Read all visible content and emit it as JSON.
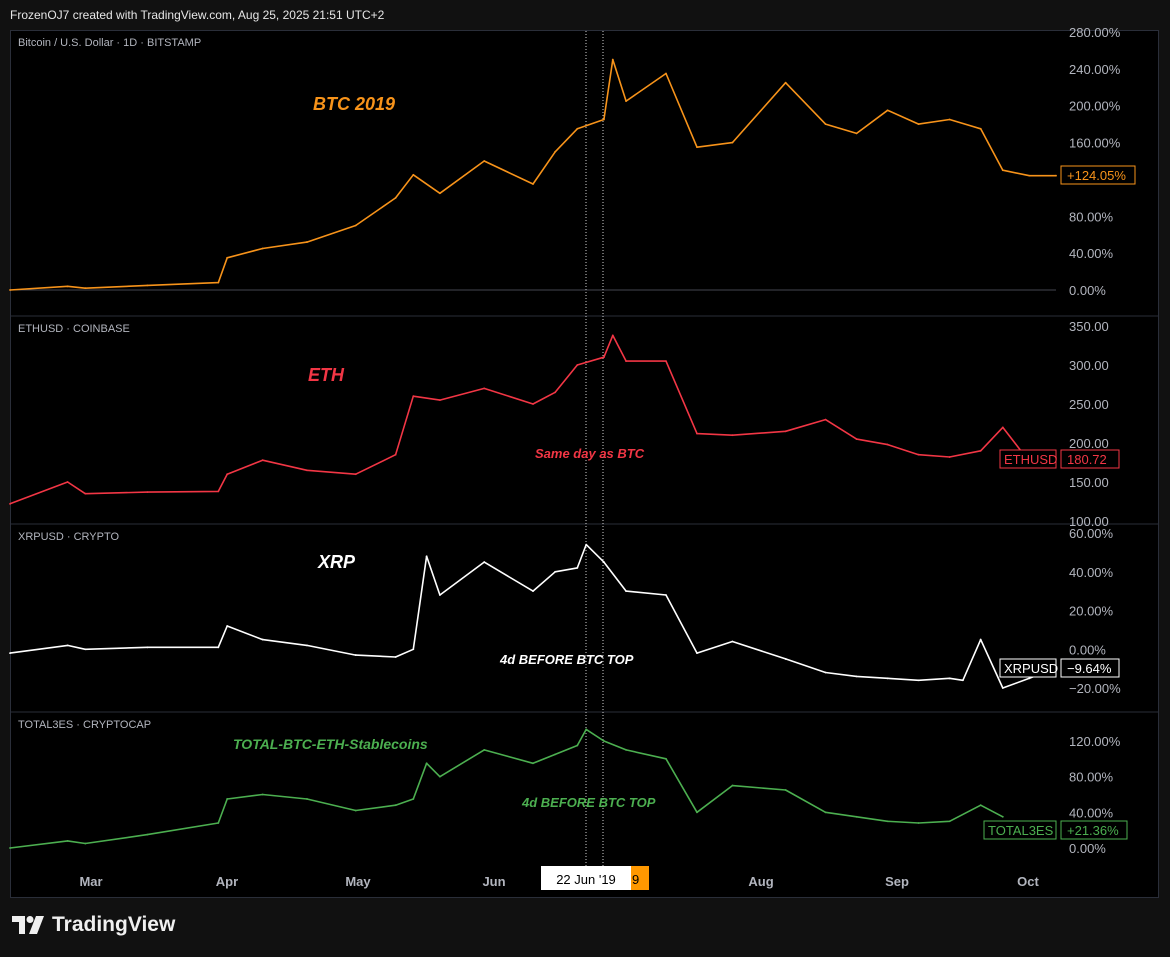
{
  "header": {
    "text": "FrozenOJ7 created with TradingView.com, Aug 25, 2025 21:51 UTC+2"
  },
  "footer": {
    "brand": "TradingView"
  },
  "colors": {
    "btc": "#f7931a",
    "eth": "#f23645",
    "xrp": "#ffffff",
    "total": "#4caf50",
    "grid": "#2a2e39",
    "axis_text": "#b2b5be"
  },
  "x_axis": {
    "labels": [
      "Mar",
      "Apr",
      "May",
      "Jun",
      "Aug",
      "Sep",
      "Oct"
    ],
    "crosshair_label": "22 Jun '19",
    "crosshair_label_overflow": "9"
  },
  "chart_data": [
    {
      "type": "line",
      "title": "Bitcoin / U.S. Dollar · 1D · BITSTAMP",
      "annotation": "BTC 2019",
      "y_ticks": [
        "280.00%",
        "240.00%",
        "200.00%",
        "160.00%",
        "80.00%",
        "40.00%",
        "0.00%"
      ],
      "ylim": [
        0,
        280
      ],
      "unit": "%",
      "last_value_label": "+124.05%",
      "series": [
        {
          "x": [
            "Feb 12",
            "Feb 25",
            "Mar 1",
            "Mar 15",
            "Mar 31",
            "Apr 2",
            "Apr 10",
            "Apr 20",
            "May 1",
            "May 10",
            "May 14",
            "May 20",
            "May 30",
            "Jun 10",
            "Jun 15",
            "Jun 20",
            "Jun 26",
            "Jun 28",
            "Jul 1",
            "Jul 10",
            "Jul 17",
            "Jul 25",
            "Aug 6",
            "Aug 15",
            "Aug 22",
            "Aug 29",
            "Sep 5",
            "Sep 12",
            "Sep 19",
            "Sep 24",
            "Sep 30",
            "Oct 6"
          ],
          "values": [
            0,
            4,
            2,
            5,
            8,
            35,
            45,
            52,
            70,
            100,
            125,
            105,
            140,
            115,
            150,
            175,
            185,
            250,
            205,
            235,
            155,
            160,
            225,
            180,
            170,
            195,
            180,
            185,
            175,
            130,
            124,
            124.05
          ]
        }
      ]
    },
    {
      "type": "line",
      "title": "ETHUSD · COINBASE",
      "annotation": "ETH",
      "note": "Same day as BTC",
      "y_ticks": [
        "350.00",
        "300.00",
        "250.00",
        "200.00",
        "150.00",
        "100.00"
      ],
      "ylim": [
        100,
        350
      ],
      "last_value_tag": "ETHUSD",
      "last_value_label": "180.72",
      "series": [
        {
          "x": [
            "Feb 12",
            "Feb 25",
            "Mar 1",
            "Mar 15",
            "Mar 31",
            "Apr 2",
            "Apr 10",
            "Apr 20",
            "May 1",
            "May 10",
            "May 14",
            "May 20",
            "May 30",
            "Jun 10",
            "Jun 15",
            "Jun 20",
            "Jun 26",
            "Jun 28",
            "Jul 1",
            "Jul 10",
            "Jul 17",
            "Jul 25",
            "Aug 6",
            "Aug 15",
            "Aug 22",
            "Aug 29",
            "Sep 5",
            "Sep 12",
            "Sep 19",
            "Sep 24",
            "Sep 30",
            "Oct 6"
          ],
          "values": [
            122,
            150,
            135,
            137,
            138,
            160,
            178,
            165,
            160,
            185,
            260,
            255,
            270,
            250,
            265,
            300,
            310,
            338,
            305,
            305,
            212,
            210,
            215,
            230,
            205,
            198,
            185,
            182,
            190,
            220,
            176,
            180.72
          ]
        }
      ]
    },
    {
      "type": "line",
      "title": "XRPUSD · CRYPTO",
      "annotation": "XRP",
      "note": "4d BEFORE BTC TOP",
      "y_ticks": [
        "60.00%",
        "40.00%",
        "20.00%",
        "0.00%",
        "−20.00%"
      ],
      "ylim": [
        -25,
        60
      ],
      "unit": "%",
      "last_value_tag": "XRPUSD",
      "last_value_label": "−9.64%",
      "series": [
        {
          "x": [
            "Feb 12",
            "Feb 25",
            "Mar 1",
            "Mar 15",
            "Mar 31",
            "Apr 2",
            "Apr 10",
            "Apr 20",
            "May 1",
            "May 10",
            "May 14",
            "May 17",
            "May 20",
            "May 30",
            "Jun 10",
            "Jun 15",
            "Jun 20",
            "Jun 22",
            "Jun 26",
            "Jul 1",
            "Jul 10",
            "Jul 17",
            "Jul 25",
            "Aug 6",
            "Aug 15",
            "Aug 22",
            "Aug 29",
            "Sep 5",
            "Sep 12",
            "Sep 15",
            "Sep 19",
            "Sep 24",
            "Sep 30",
            "Oct 6"
          ],
          "values": [
            -2,
            2,
            0,
            1,
            1,
            12,
            5,
            2,
            -3,
            -4,
            0,
            48,
            28,
            45,
            30,
            40,
            42,
            54,
            45,
            30,
            28,
            -2,
            4,
            -5,
            -12,
            -14,
            -15,
            -16,
            -15,
            -16,
            5,
            -20,
            -15,
            -9.64
          ]
        }
      ]
    },
    {
      "type": "line",
      "title": "TOTAL3ES · CRYPTOCAP",
      "annotation": "TOTAL-BTC-ETH-Stablecoins",
      "note": "4d BEFORE BTC TOP",
      "y_ticks": [
        "120.00%",
        "80.00%",
        "40.00%",
        "0.00%"
      ],
      "ylim": [
        0,
        130
      ],
      "unit": "%",
      "last_value_tag": "TOTAL3ES",
      "last_value_label": "+21.36%",
      "series": [
        {
          "x": [
            "Feb 12",
            "Feb 25",
            "Mar 1",
            "Mar 15",
            "Mar 31",
            "Apr 2",
            "Apr 10",
            "Apr 20",
            "May 1",
            "May 10",
            "May 14",
            "May 17",
            "May 20",
            "May 30",
            "Jun 10",
            "Jun 15",
            "Jun 20",
            "Jun 22",
            "Jun 26",
            "Jul 1",
            "Jul 10",
            "Jul 17",
            "Jul 25",
            "Aug 6",
            "Aug 15",
            "Aug 22",
            "Aug 29",
            "Sep 5",
            "Sep 12",
            "Sep 19",
            "Sep 24"
          ],
          "values": [
            0,
            8,
            5,
            15,
            28,
            55,
            60,
            55,
            42,
            48,
            55,
            95,
            80,
            110,
            95,
            105,
            115,
            133,
            120,
            110,
            100,
            40,
            70,
            65,
            40,
            35,
            30,
            28,
            30,
            48,
            35
          ]
        }
      ]
    }
  ]
}
